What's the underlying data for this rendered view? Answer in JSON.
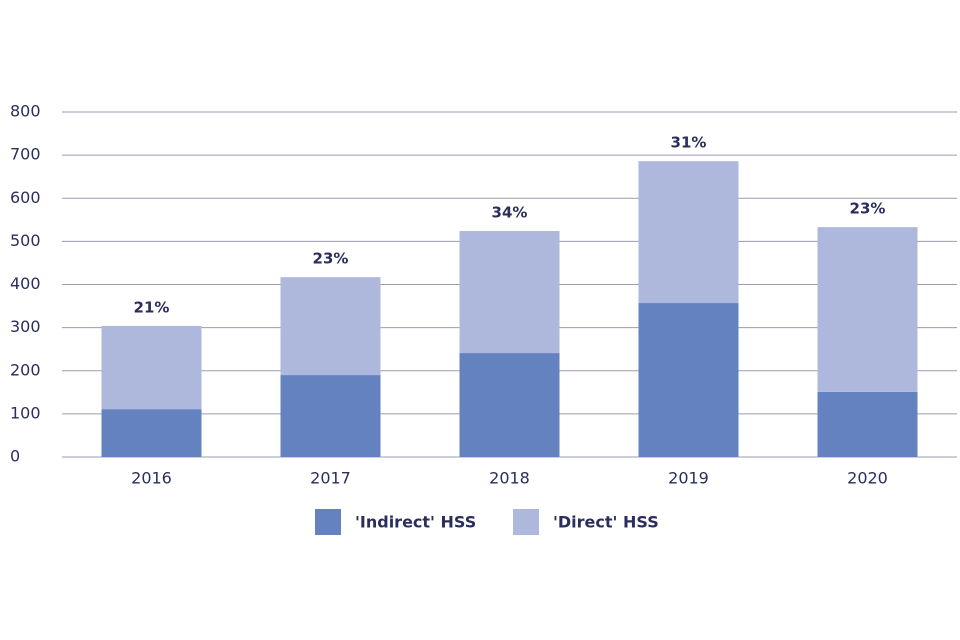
{
  "chart_data": {
    "type": "stacked_bar",
    "categories": [
      "2016",
      "2017",
      "2018",
      "2019",
      "2020"
    ],
    "series": [
      {
        "name": "'Indirect' HSS",
        "color": "#6582c0",
        "values": [
          111,
          190,
          241,
          357,
          151
        ]
      },
      {
        "name": "'Direct' HSS",
        "color": "#aeb8dc",
        "values": [
          193,
          227,
          283,
          329,
          382
        ]
      }
    ],
    "annotations": [
      "21%",
      "23%",
      "34%",
      "31%",
      "23%"
    ],
    "ylim": [
      0,
      800
    ],
    "yticks": [
      0,
      100,
      200,
      300,
      400,
      500,
      600,
      700,
      800
    ],
    "grid": true
  }
}
